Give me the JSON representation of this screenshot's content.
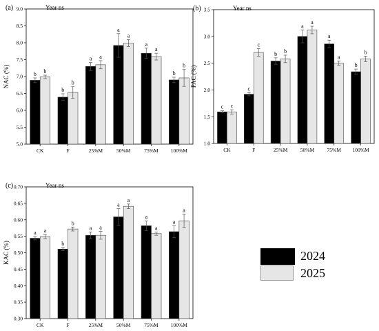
{
  "legend": [
    {
      "label": "2024",
      "color": "#000000"
    },
    {
      "label": "2025",
      "color": "#e6e6e6"
    }
  ],
  "chart_data": [
    {
      "type": "bar",
      "panel": "(a)",
      "note": "Year ns",
      "ylabel": "NAC (%)",
      "categories": [
        "CK",
        "F",
        "25%M",
        "50%M",
        "75%M",
        "100%M"
      ],
      "ylim": [
        5.0,
        9.0
      ],
      "yticks": [
        "5.0",
        "5.5",
        "6.0",
        "6.5",
        "7.0",
        "7.5",
        "8.0",
        "8.5",
        "9.0"
      ],
      "series": [
        {
          "name": "2024",
          "values": [
            6.89,
            6.39,
            7.3,
            7.92,
            7.69,
            6.9
          ],
          "errors": [
            0.07,
            0.1,
            0.12,
            0.35,
            0.15,
            0.08
          ],
          "letters": [
            "b",
            "b",
            "a",
            "a",
            "a",
            "b"
          ]
        },
        {
          "name": "2025",
          "values": [
            6.99,
            6.53,
            7.35,
            7.99,
            7.59,
            6.96
          ],
          "errors": [
            0.05,
            0.17,
            0.12,
            0.1,
            0.1,
            0.25
          ],
          "letters": [
            "b",
            "b",
            "a",
            "a",
            "a",
            "b"
          ]
        }
      ]
    },
    {
      "type": "bar",
      "panel": "(b)",
      "note": "Year ns",
      "ylabel": "PAC (%)",
      "categories": [
        "CK",
        "F",
        "25%M",
        "50%M",
        "75%M",
        "100%M"
      ],
      "ylim": [
        1.0,
        3.5
      ],
      "yticks": [
        "1.0",
        "1.5",
        "2.0",
        "2.5",
        "3.0",
        "3.5"
      ],
      "series": [
        {
          "name": "2024",
          "values": [
            1.59,
            1.92,
            2.54,
            3.0,
            2.86,
            2.34
          ],
          "errors": [
            0.02,
            0.03,
            0.06,
            0.12,
            0.07,
            0.05
          ],
          "letters": [
            "c",
            "c",
            "b",
            "a",
            "a",
            "b"
          ]
        },
        {
          "name": "2025",
          "values": [
            1.59,
            2.7,
            2.58,
            3.12,
            2.5,
            2.58
          ],
          "errors": [
            0.04,
            0.07,
            0.07,
            0.07,
            0.04,
            0.05
          ],
          "letters": [
            "c",
            "c",
            "b",
            "a",
            "a",
            "b"
          ]
        }
      ]
    },
    {
      "type": "bar",
      "panel": "(c)",
      "note": "Year ns",
      "ylabel": "KAC (%)",
      "categories": [
        "CK",
        "F",
        "25%M",
        "50%M",
        "75%M",
        "100%M"
      ],
      "ylim": [
        0.3,
        0.7
      ],
      "yticks": [
        "0.30",
        "0.35",
        "0.40",
        "0.45",
        "0.50",
        "0.55",
        "0.60",
        "0.65",
        "0.70"
      ],
      "series": [
        {
          "name": "2024",
          "values": [
            0.544,
            0.511,
            0.553,
            0.609,
            0.582,
            0.564
          ],
          "errors": [
            0.005,
            0.005,
            0.01,
            0.025,
            0.015,
            0.018
          ],
          "letters": [
            "a",
            "b",
            "a",
            "a",
            "a",
            "a"
          ]
        },
        {
          "name": "2025",
          "values": [
            0.549,
            0.572,
            0.553,
            0.641,
            0.558,
            0.597
          ],
          "errors": [
            0.006,
            0.006,
            0.012,
            0.007,
            0.005,
            0.02
          ],
          "letters": [
            "a",
            "b",
            "a",
            "a",
            "a",
            "a"
          ]
        }
      ]
    }
  ]
}
